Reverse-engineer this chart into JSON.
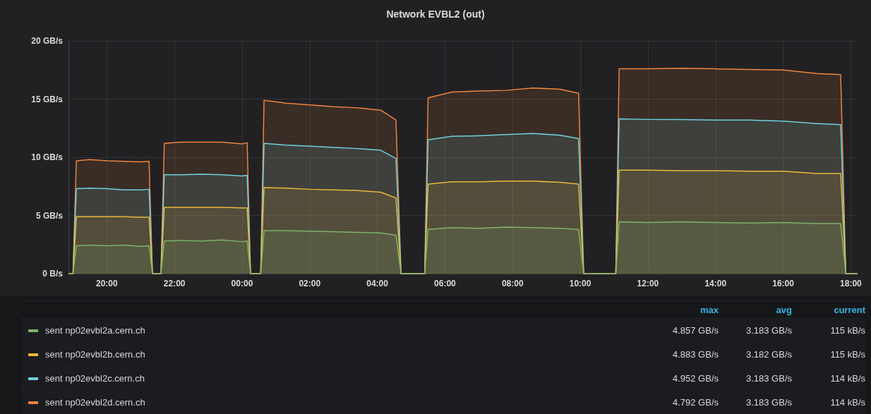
{
  "chart_data": {
    "type": "area",
    "title": "Network EVBL2 (out)",
    "stacked": true,
    "grid": true,
    "legend": "bottom",
    "marker": "none",
    "line_style": "solid",
    "x": [
      "2000-01-01T18:52",
      "2000-01-01T19:00",
      "2000-01-01T19:06",
      "2000-01-01T19:30",
      "2000-01-01T20:00",
      "2000-01-01T20:30",
      "2000-01-01T21:00",
      "2000-01-01T21:15",
      "2000-01-01T21:21",
      "2000-01-01T21:36",
      "2000-01-01T21:42",
      "2000-01-01T22:12",
      "2000-01-01T22:48",
      "2000-01-01T23:24",
      "2000-01-02T00:00",
      "2000-01-02T00:09",
      "2000-01-02T00:15",
      "2000-01-02T00:33",
      "2000-01-02T00:39",
      "2000-01-02T01:18",
      "2000-01-02T02:00",
      "2000-01-02T02:42",
      "2000-01-02T03:24",
      "2000-01-02T04:06",
      "2000-01-02T04:33",
      "2000-01-02T04:42",
      "2000-01-02T05:24",
      "2000-01-02T05:30",
      "2000-01-02T06:12",
      "2000-01-02T07:00",
      "2000-01-02T07:48",
      "2000-01-02T08:36",
      "2000-01-02T09:24",
      "2000-01-02T09:57",
      "2000-01-02T10:06",
      "2000-01-02T11:03",
      "2000-01-02T11:09",
      "2000-01-02T12:00",
      "2000-01-02T13:00",
      "2000-01-02T14:00",
      "2000-01-02T15:00",
      "2000-01-02T16:00",
      "2000-01-02T17:00",
      "2000-01-02T17:42",
      "2000-01-02T17:51",
      "2000-01-02T18:12"
    ],
    "xlim": [
      "2000-01-01T18:52",
      "2000-01-02T18:12"
    ],
    "xticks": [
      {
        "value": "2000-01-01T20:00",
        "label": "20:00"
      },
      {
        "value": "2000-01-01T22:00",
        "label": "22:00"
      },
      {
        "value": "2000-01-02T00:00",
        "label": "00:00"
      },
      {
        "value": "2000-01-02T02:00",
        "label": "02:00"
      },
      {
        "value": "2000-01-02T04:00",
        "label": "04:00"
      },
      {
        "value": "2000-01-02T06:00",
        "label": "06:00"
      },
      {
        "value": "2000-01-02T08:00",
        "label": "08:00"
      },
      {
        "value": "2000-01-02T10:00",
        "label": "10:00"
      },
      {
        "value": "2000-01-02T12:00",
        "label": "12:00"
      },
      {
        "value": "2000-01-02T14:00",
        "label": "14:00"
      },
      {
        "value": "2000-01-02T16:00",
        "label": "16:00"
      },
      {
        "value": "2000-01-02T18:00",
        "label": "18:00"
      }
    ],
    "ylim": [
      0,
      20
    ],
    "yticks": [
      {
        "value": 0,
        "label": "0 B/s"
      },
      {
        "value": 5,
        "label": "5 GB/s"
      },
      {
        "value": 10,
        "label": "10 GB/s"
      },
      {
        "value": 15,
        "label": "15 GB/s"
      },
      {
        "value": 20,
        "label": "20 GB/s"
      }
    ],
    "series": [
      {
        "name": "sent np02evbl2a.cern.ch",
        "color": "#7eb26d",
        "values": [
          0,
          0,
          2.4,
          2.45,
          2.4,
          2.45,
          2.35,
          2.4,
          0,
          0,
          2.8,
          2.85,
          2.8,
          2.9,
          2.75,
          2.8,
          0,
          0,
          3.7,
          3.7,
          3.65,
          3.6,
          3.55,
          3.5,
          3.3,
          0,
          0,
          3.8,
          3.95,
          3.9,
          4.0,
          3.95,
          3.9,
          3.8,
          0,
          0,
          4.45,
          4.4,
          4.45,
          4.4,
          4.35,
          4.4,
          4.3,
          4.3,
          0,
          0
        ]
      },
      {
        "name": "sent np02evbl2b.cern.ch",
        "color": "#eab839",
        "values": [
          0,
          0,
          2.5,
          2.45,
          2.5,
          2.45,
          2.5,
          2.45,
          0,
          0,
          2.9,
          2.85,
          2.9,
          2.8,
          2.9,
          2.85,
          0,
          0,
          3.7,
          3.65,
          3.6,
          3.6,
          3.6,
          3.5,
          3.2,
          0,
          0,
          3.9,
          3.95,
          4.0,
          3.95,
          4.0,
          3.95,
          3.9,
          0,
          0,
          4.45,
          4.5,
          4.4,
          4.45,
          4.45,
          4.4,
          4.3,
          4.3,
          0,
          0
        ]
      },
      {
        "name": "sent np02evbl2c.cern.ch",
        "color": "#6ed0e0",
        "values": [
          0,
          0,
          2.4,
          2.45,
          2.4,
          2.3,
          2.35,
          2.4,
          0,
          0,
          2.8,
          2.8,
          2.85,
          2.8,
          2.75,
          2.8,
          0,
          0,
          3.8,
          3.7,
          3.7,
          3.65,
          3.6,
          3.6,
          3.4,
          0,
          0,
          3.8,
          3.9,
          3.95,
          4.0,
          4.1,
          4.05,
          3.9,
          0,
          0,
          4.4,
          4.35,
          4.4,
          4.35,
          4.4,
          4.3,
          4.3,
          4.2,
          0,
          0
        ]
      },
      {
        "name": "sent np02evbl2d.cern.ch",
        "color": "#ef843c",
        "values": [
          0,
          0,
          2.4,
          2.45,
          2.4,
          2.45,
          2.4,
          2.4,
          0,
          0,
          2.7,
          2.8,
          2.75,
          2.8,
          2.75,
          2.8,
          0,
          0,
          3.7,
          3.6,
          3.55,
          3.5,
          3.5,
          3.45,
          3.3,
          0,
          0,
          3.6,
          3.8,
          3.85,
          3.8,
          3.9,
          3.95,
          3.9,
          0,
          0,
          4.3,
          4.35,
          4.4,
          4.4,
          4.35,
          4.4,
          4.3,
          4.3,
          0,
          0
        ]
      }
    ],
    "annotations": [
      "max",
      "avg",
      "current",
      "4.857 GB/s",
      "3.183 GB/s",
      "115 kB/s",
      "4.883 GB/s",
      "3.182 GB/s",
      "115 kB/s",
      "4.952 GB/s",
      "3.183 GB/s",
      "114 kB/s",
      "4.792 GB/s",
      "3.183 GB/s",
      "114 kB/s"
    ]
  }
}
